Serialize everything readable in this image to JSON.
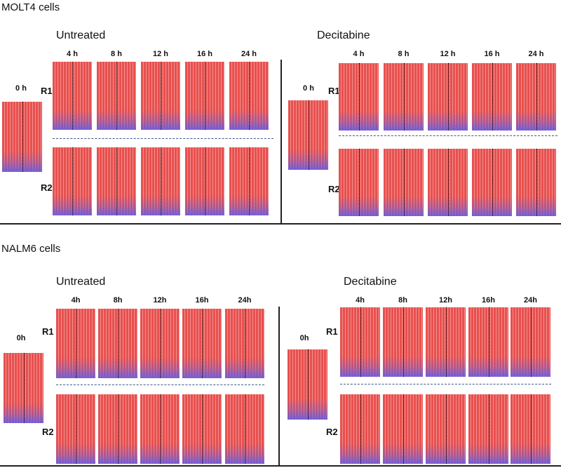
{
  "sections": [
    {
      "title": "MOLT4 cells",
      "groups": [
        {
          "label": "Untreated",
          "zero_label": "0 h",
          "row_labels": [
            "R1",
            "R2"
          ],
          "times": [
            "4 h",
            "8 h",
            "12 h",
            "16 h",
            "24 h"
          ]
        },
        {
          "label": "Decitabine",
          "zero_label": "0 h",
          "row_labels": [
            "R1",
            "R2"
          ],
          "times": [
            "4 h",
            "8 h",
            "12 h",
            "16 h",
            "24 h"
          ]
        }
      ]
    },
    {
      "title": "NALM6 cells",
      "groups": [
        {
          "label": "Untreated",
          "zero_label": "0h",
          "row_labels": [
            "R1",
            "R2"
          ],
          "times": [
            "4h",
            "8h",
            "12h",
            "16h",
            "24h"
          ]
        },
        {
          "label": "Decitabine",
          "zero_label": "0h",
          "row_labels": [
            "R1",
            "R2"
          ],
          "times": [
            "4h",
            "8h",
            "12h",
            "16h",
            "24h"
          ]
        }
      ]
    }
  ]
}
